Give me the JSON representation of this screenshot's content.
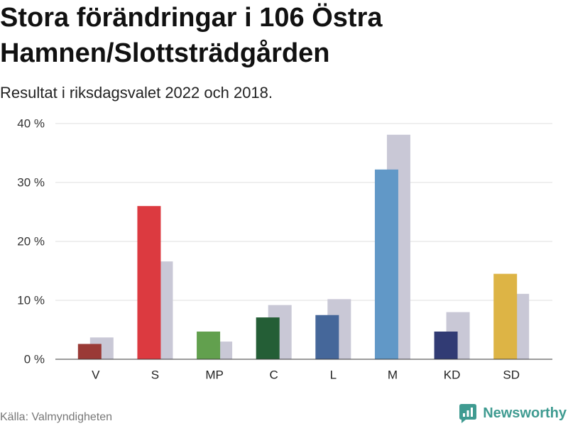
{
  "chart_data": {
    "type": "bar",
    "title": "Stora förändringar i 106 Östra Hamnen/Slottsträdgården",
    "subtitle": "Resultat i riksdagsvalet 2022 och 2018.",
    "categories": [
      "V",
      "S",
      "MP",
      "C",
      "L",
      "M",
      "KD",
      "SD"
    ],
    "series": [
      {
        "year": 2022,
        "values": [
          2.6,
          26.0,
          4.7,
          7.1,
          7.5,
          32.2,
          4.7,
          14.5
        ],
        "colors": [
          "#9a3a36",
          "#dc3a40",
          "#62a04e",
          "#245e36",
          "#45679a",
          "#6198c7",
          "#313b74",
          "#ddb445"
        ]
      },
      {
        "year": 2018,
        "values": [
          3.7,
          16.6,
          3.0,
          9.2,
          10.2,
          38.1,
          8.0,
          11.1
        ],
        "color": "#c9c8d6"
      }
    ],
    "ylim": [
      0,
      40
    ],
    "yticks": [
      0,
      10,
      20,
      30,
      40
    ],
    "ytick_labels": [
      "0 %",
      "10 %",
      "20 %",
      "30 %",
      "40 %"
    ],
    "grid": true,
    "colors": {
      "grid": "#dfdfdf",
      "axis": "#3a3a3a"
    }
  },
  "source": "Källa: Valmyndigheten",
  "brand": {
    "name": "Newsworthy",
    "icon": "newsworthy-logo-icon",
    "color": "#3f9b91"
  }
}
